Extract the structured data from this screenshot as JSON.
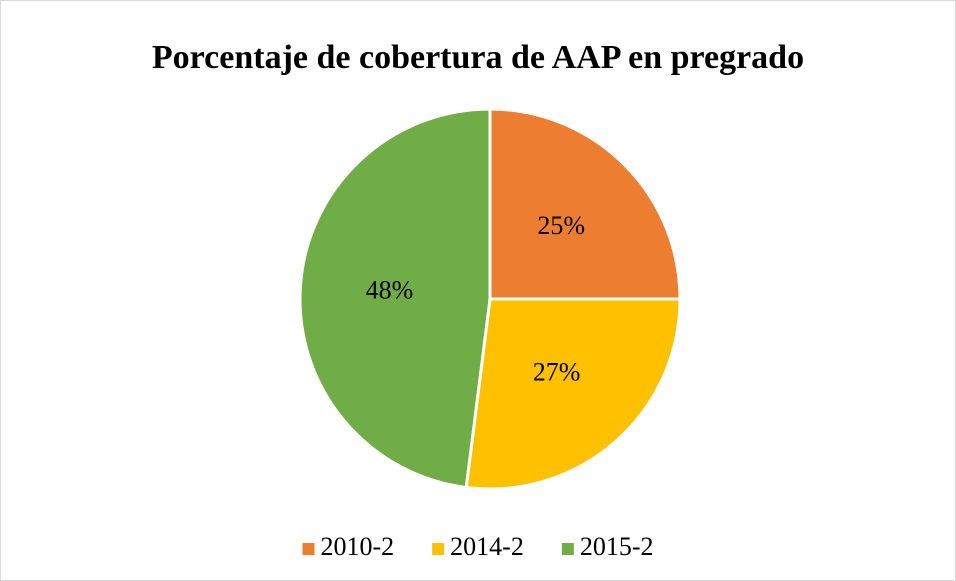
{
  "chart_data": {
    "type": "pie",
    "title": "Porcentaje de cobertura de AAP en pregrado",
    "categories": [
      "2010-2",
      "2014-2",
      "2015-2"
    ],
    "values": [
      25,
      27,
      48
    ],
    "value_labels": [
      "25%",
      "27%",
      "48%"
    ],
    "colors": [
      "#ed7d31",
      "#ffc000",
      "#70ad47"
    ],
    "legend": "bottom"
  }
}
